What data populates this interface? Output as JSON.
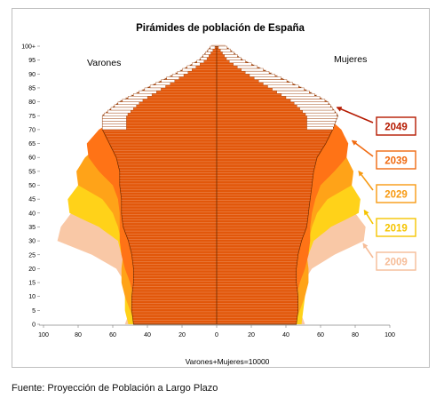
{
  "chart_data": {
    "type": "population-pyramid",
    "title": "Pirámides de población de España",
    "left_label": "Varones",
    "right_label": "Mujeres",
    "xlabel": "Varones+Mujeres=10000",
    "x_ticks": [
      "100",
      "80",
      "60",
      "40",
      "20",
      "0",
      "20",
      "40",
      "60",
      "80",
      "100"
    ],
    "xlim": [
      -100,
      100
    ],
    "y_ticks": [
      "0",
      "5",
      "10",
      "15",
      "20",
      "25",
      "30",
      "35",
      "40",
      "45",
      "50",
      "55",
      "60",
      "65",
      "70",
      "75",
      "80",
      "85",
      "90",
      "95",
      "100+"
    ],
    "ylim": [
      0,
      100
    ],
    "grid": false,
    "series": [
      {
        "name": "2009",
        "color": "#f9c8a6",
        "label_color": "#f6bc97",
        "male": [
          [
            0,
            53
          ],
          [
            5,
            50
          ],
          [
            10,
            50
          ],
          [
            15,
            53
          ],
          [
            20,
            58
          ],
          [
            25,
            72
          ],
          [
            30,
            92
          ],
          [
            35,
            90
          ],
          [
            40,
            84
          ],
          [
            45,
            76
          ],
          [
            50,
            69
          ],
          [
            55,
            62
          ],
          [
            60,
            56
          ],
          [
            65,
            47
          ],
          [
            70,
            42
          ],
          [
            75,
            34
          ],
          [
            80,
            26
          ],
          [
            85,
            17
          ],
          [
            90,
            8
          ],
          [
            95,
            3
          ],
          [
            100,
            1
          ]
        ],
        "female": [
          [
            0,
            51
          ],
          [
            5,
            48
          ],
          [
            10,
            48
          ],
          [
            15,
            50
          ],
          [
            20,
            55
          ],
          [
            25,
            68
          ],
          [
            30,
            85
          ],
          [
            35,
            86
          ],
          [
            40,
            80
          ],
          [
            45,
            74
          ],
          [
            50,
            68
          ],
          [
            55,
            63
          ],
          [
            60,
            58
          ],
          [
            65,
            52
          ],
          [
            70,
            49
          ],
          [
            75,
            45
          ],
          [
            80,
            39
          ],
          [
            85,
            28
          ],
          [
            90,
            16
          ],
          [
            95,
            6
          ],
          [
            100,
            2
          ]
        ]
      },
      {
        "name": "2019",
        "color": "#ffd219",
        "label_color": "#f5c400",
        "male": [
          [
            0,
            51
          ],
          [
            5,
            53
          ],
          [
            10,
            53
          ],
          [
            15,
            51
          ],
          [
            20,
            52
          ],
          [
            25,
            55
          ],
          [
            30,
            57
          ],
          [
            35,
            68
          ],
          [
            40,
            85
          ],
          [
            45,
            86
          ],
          [
            50,
            80
          ],
          [
            55,
            73
          ],
          [
            60,
            66
          ],
          [
            65,
            58
          ],
          [
            70,
            50
          ],
          [
            75,
            40
          ],
          [
            80,
            30
          ],
          [
            85,
            20
          ],
          [
            90,
            11
          ],
          [
            95,
            4
          ],
          [
            100,
            1
          ]
        ],
        "female": [
          [
            0,
            49
          ],
          [
            5,
            50
          ],
          [
            10,
            51
          ],
          [
            15,
            49
          ],
          [
            20,
            50
          ],
          [
            25,
            53
          ],
          [
            30,
            56
          ],
          [
            35,
            66
          ],
          [
            40,
            82
          ],
          [
            45,
            83
          ],
          [
            50,
            78
          ],
          [
            55,
            72
          ],
          [
            60,
            66
          ],
          [
            65,
            60
          ],
          [
            70,
            56
          ],
          [
            75,
            50
          ],
          [
            80,
            42
          ],
          [
            85,
            32
          ],
          [
            90,
            19
          ],
          [
            95,
            8
          ],
          [
            100,
            2
          ]
        ]
      },
      {
        "name": "2029",
        "color": "#ffa318",
        "label_color": "#f79a12",
        "male": [
          [
            0,
            47
          ],
          [
            5,
            50
          ],
          [
            10,
            53
          ],
          [
            15,
            55
          ],
          [
            20,
            55
          ],
          [
            25,
            54
          ],
          [
            30,
            55
          ],
          [
            35,
            57
          ],
          [
            40,
            60
          ],
          [
            45,
            66
          ],
          [
            50,
            80
          ],
          [
            55,
            81
          ],
          [
            60,
            76
          ],
          [
            65,
            67
          ],
          [
            70,
            57
          ],
          [
            75,
            45
          ],
          [
            80,
            34
          ],
          [
            85,
            22
          ],
          [
            90,
            12
          ],
          [
            95,
            5
          ],
          [
            100,
            1
          ]
        ],
        "female": [
          [
            0,
            45
          ],
          [
            5,
            48
          ],
          [
            10,
            51
          ],
          [
            15,
            53
          ],
          [
            20,
            53
          ],
          [
            25,
            52
          ],
          [
            30,
            53
          ],
          [
            35,
            55
          ],
          [
            40,
            58
          ],
          [
            45,
            64
          ],
          [
            50,
            78
          ],
          [
            55,
            79
          ],
          [
            60,
            75
          ],
          [
            65,
            68
          ],
          [
            70,
            62
          ],
          [
            75,
            54
          ],
          [
            80,
            44
          ],
          [
            85,
            33
          ],
          [
            90,
            21
          ],
          [
            95,
            9
          ],
          [
            100,
            3
          ]
        ]
      },
      {
        "name": "2039",
        "color": "#ff7316",
        "label_color": "#f06a10",
        "male": [
          [
            0,
            47
          ],
          [
            5,
            48
          ],
          [
            10,
            48
          ],
          [
            15,
            50
          ],
          [
            20,
            53
          ],
          [
            25,
            55
          ],
          [
            30,
            56
          ],
          [
            35,
            56
          ],
          [
            40,
            56
          ],
          [
            45,
            57
          ],
          [
            50,
            60
          ],
          [
            55,
            68
          ],
          [
            60,
            74
          ],
          [
            65,
            75
          ],
          [
            70,
            68
          ],
          [
            75,
            55
          ],
          [
            80,
            42
          ],
          [
            85,
            28
          ],
          [
            90,
            15
          ],
          [
            95,
            6
          ],
          [
            100,
            2
          ]
        ],
        "female": [
          [
            0,
            45
          ],
          [
            5,
            46
          ],
          [
            10,
            46
          ],
          [
            15,
            48
          ],
          [
            20,
            51
          ],
          [
            25,
            53
          ],
          [
            30,
            54
          ],
          [
            35,
            54
          ],
          [
            40,
            55
          ],
          [
            45,
            57
          ],
          [
            50,
            60
          ],
          [
            55,
            68
          ],
          [
            60,
            75
          ],
          [
            65,
            76
          ],
          [
            70,
            72
          ],
          [
            75,
            63
          ],
          [
            80,
            51
          ],
          [
            85,
            37
          ],
          [
            90,
            23
          ],
          [
            95,
            10
          ],
          [
            100,
            3
          ]
        ]
      },
      {
        "name": "2049",
        "color": "#e2570a",
        "label_color": "#b51a00",
        "male": [
          [
            0,
            48
          ],
          [
            5,
            49
          ],
          [
            10,
            49
          ],
          [
            15,
            48
          ],
          [
            20,
            48
          ],
          [
            25,
            49
          ],
          [
            30,
            51
          ],
          [
            35,
            54
          ],
          [
            40,
            55
          ],
          [
            45,
            55
          ],
          [
            50,
            56
          ],
          [
            55,
            56
          ],
          [
            60,
            58
          ],
          [
            65,
            62
          ],
          [
            70,
            66
          ],
          [
            75,
            66
          ],
          [
            80,
            56
          ],
          [
            85,
            40
          ],
          [
            90,
            24
          ],
          [
            95,
            10
          ],
          [
            100,
            3
          ]
        ],
        "female": [
          [
            0,
            46
          ],
          [
            5,
            47
          ],
          [
            10,
            47
          ],
          [
            15,
            46
          ],
          [
            20,
            46
          ],
          [
            25,
            47
          ],
          [
            30,
            49
          ],
          [
            35,
            52
          ],
          [
            40,
            53
          ],
          [
            45,
            54
          ],
          [
            50,
            55
          ],
          [
            55,
            56
          ],
          [
            60,
            58
          ],
          [
            65,
            63
          ],
          [
            70,
            67
          ],
          [
            75,
            70
          ],
          [
            80,
            64
          ],
          [
            85,
            49
          ],
          [
            90,
            32
          ],
          [
            95,
            15
          ],
          [
            100,
            5
          ]
        ]
      }
    ]
  },
  "footer": {
    "source": "Fuente: Proyección de Población a Largo Plazo"
  }
}
